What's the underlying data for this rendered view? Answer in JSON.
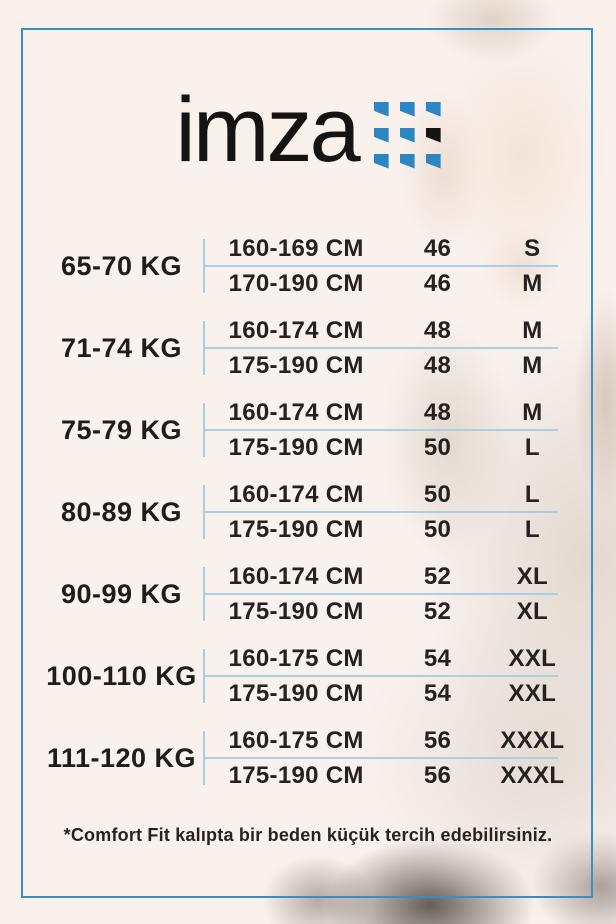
{
  "brand": {
    "logo_text": "imza",
    "dots": [
      "blue",
      "blue",
      "blue",
      "blue",
      "blue",
      "black",
      "blue",
      "blue",
      "blue"
    ]
  },
  "size_chart": {
    "groups": [
      {
        "weight": "65-70 KG",
        "rows": [
          {
            "height": "160-169 CM",
            "size": "46",
            "letter": "S"
          },
          {
            "height": "170-190 CM",
            "size": "46",
            "letter": "M"
          }
        ]
      },
      {
        "weight": "71-74 KG",
        "rows": [
          {
            "height": "160-174 CM",
            "size": "48",
            "letter": "M"
          },
          {
            "height": "175-190 CM",
            "size": "48",
            "letter": "M"
          }
        ]
      },
      {
        "weight": "75-79 KG",
        "rows": [
          {
            "height": "160-174 CM",
            "size": "48",
            "letter": "M"
          },
          {
            "height": "175-190 CM",
            "size": "50",
            "letter": "L"
          }
        ]
      },
      {
        "weight": "80-89 KG",
        "rows": [
          {
            "height": "160-174 CM",
            "size": "50",
            "letter": "L"
          },
          {
            "height": "175-190 CM",
            "size": "50",
            "letter": "L"
          }
        ]
      },
      {
        "weight": "90-99 KG",
        "rows": [
          {
            "height": "160-174 CM",
            "size": "52",
            "letter": "XL"
          },
          {
            "height": "175-190 CM",
            "size": "52",
            "letter": "XL"
          }
        ]
      },
      {
        "weight": "100-110 KG",
        "rows": [
          {
            "height": "160-175 CM",
            "size": "54",
            "letter": "XXL"
          },
          {
            "height": "175-190 CM",
            "size": "54",
            "letter": "XXL"
          }
        ]
      },
      {
        "weight": "111-120 KG",
        "rows": [
          {
            "height": "160-175 CM",
            "size": "56",
            "letter": "XXXL"
          },
          {
            "height": "175-190 CM",
            "size": "56",
            "letter": "XXXL"
          }
        ]
      }
    ]
  },
  "footnote": "*Comfort Fit kalıpta bir beden küçük tercih edebilirsiniz.",
  "colors": {
    "background": "#f9f1ec",
    "frame": "#3a8ec5",
    "separator": "#a9cfe3",
    "dotBlue": "#2b86c3",
    "dotBlack": "#141414",
    "text": "#23201d"
  }
}
